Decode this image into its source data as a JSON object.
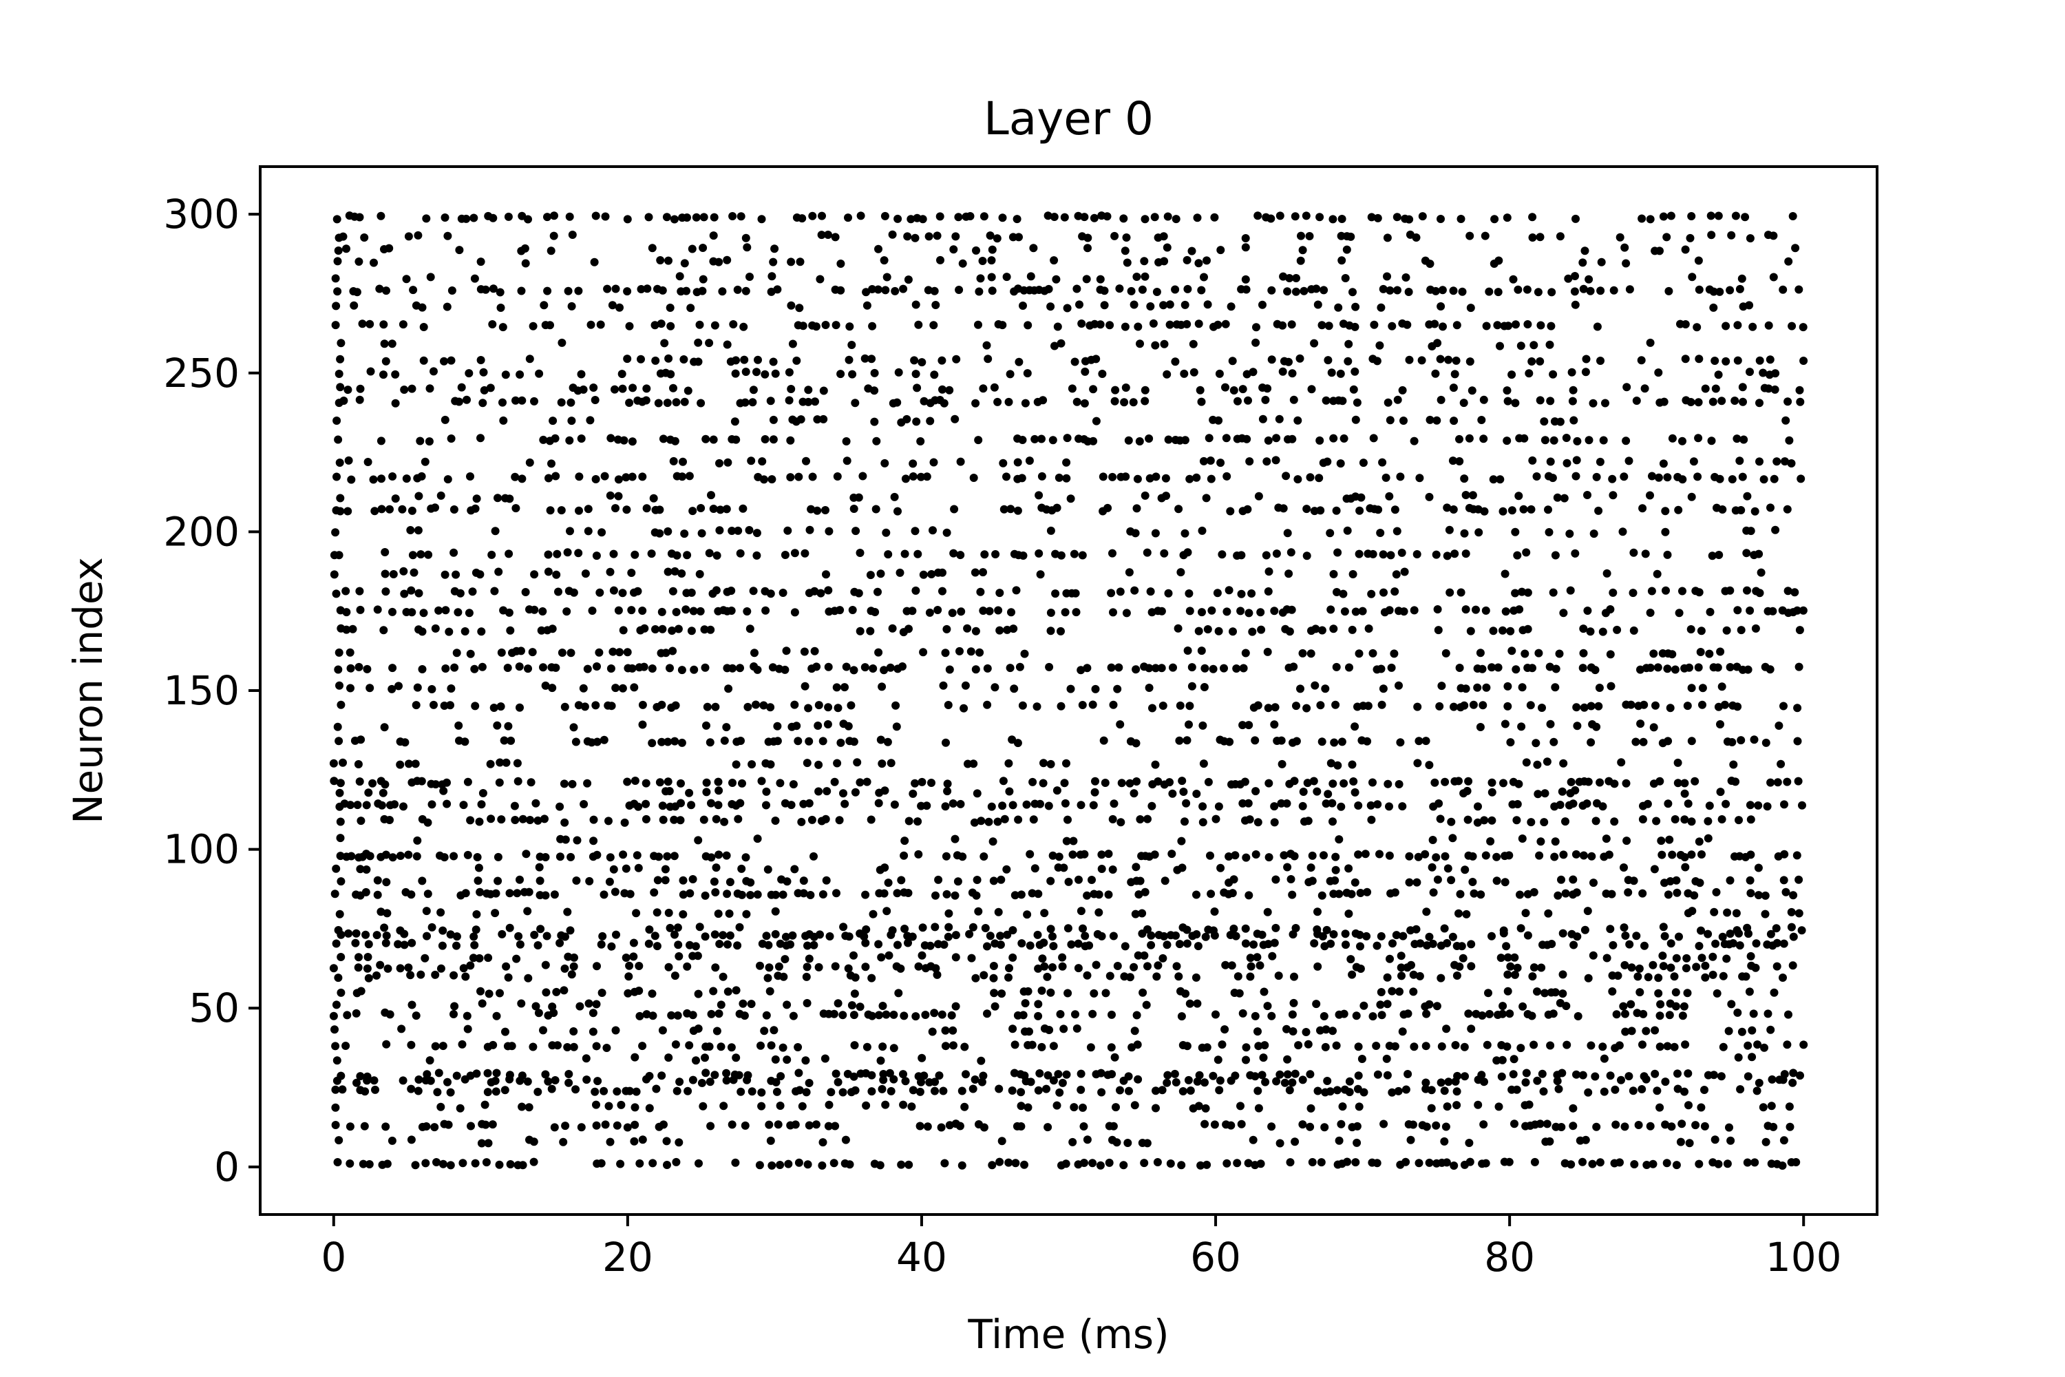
{
  "chart_data": {
    "type": "scatter",
    "title": "Layer 0",
    "xlabel": "Time (ms)",
    "ylabel": "Neuron index",
    "xlim": [
      -5,
      105
    ],
    "ylim": [
      -15,
      315
    ],
    "xticks": [
      0,
      20,
      40,
      60,
      80,
      100
    ],
    "yticks": [
      0,
      50,
      100,
      150,
      200,
      250,
      300
    ],
    "xtick_labels": [
      "0",
      "20",
      "40",
      "60",
      "80",
      "100"
    ],
    "ytick_labels": [
      "0",
      "50",
      "100",
      "150",
      "200",
      "250",
      "300"
    ],
    "grid": false,
    "legend": "none",
    "marker_color": "#000000",
    "time_range": [
      0,
      100
    ],
    "series": [
      {
        "neurons": [
          1,
          8,
          13,
          19,
          24,
          27,
          29,
          34,
          38,
          43,
          48,
          51,
          55,
          60,
          63,
          66,
          70,
          73,
          75,
          80,
          86,
          90,
          94,
          98,
          103,
          109,
          114,
          118,
          121,
          127,
          134,
          139,
          145,
          151,
          157,
          162,
          169,
          175,
          181,
          187,
          193,
          200,
          207,
          211,
          217,
          222,
          229,
          235,
          241,
          245,
          250,
          254,
          259,
          265,
          271,
          276,
          280,
          285,
          289,
          293,
          299
        ],
        "rates_per_ms": [
          1.6,
          0.3,
          1.2,
          0.5,
          1.3,
          0.9,
          1.1,
          0.3,
          1.4,
          0.4,
          1.1,
          0.6,
          0.8,
          0.6,
          0.9,
          0.5,
          1.2,
          1.3,
          0.6,
          0.5,
          1.1,
          0.6,
          0.4,
          1.2,
          0.4,
          1.0,
          1.3,
          0.4,
          1.2,
          0.5,
          0.8,
          0.5,
          1.1,
          0.5,
          1.3,
          0.6,
          1.1,
          1.2,
          1.1,
          0.5,
          1.0,
          0.5,
          1.2,
          0.5,
          1.1,
          0.5,
          1.0,
          0.4,
          1.2,
          0.6,
          0.9,
          0.7,
          0.4,
          1.1,
          0.5,
          1.2,
          0.4,
          0.4,
          0.3,
          0.6,
          1.4
        ]
      }
    ]
  }
}
